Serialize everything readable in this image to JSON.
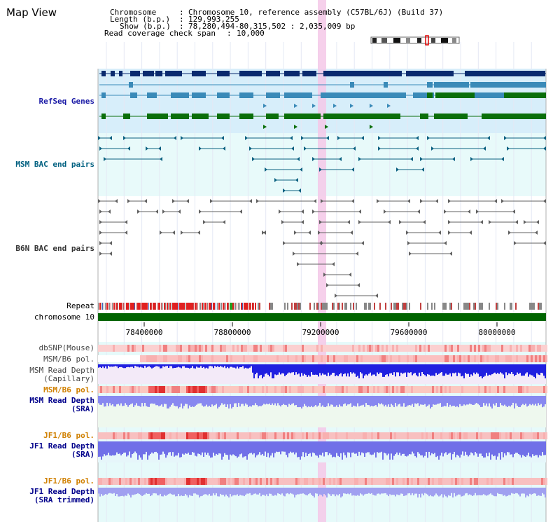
{
  "page": {
    "title": "Map View"
  },
  "info": {
    "chromosome_label": "Chromosome",
    "chromosome_value": "Chromosome 10, reference assembly (C57BL/6J) (Build 37)",
    "length_label": "Length (b.p.)",
    "length_value": "129,993,255",
    "show_label": "Show (b.p.)",
    "show_value": "78,280,494-80,315,502 : 2,035,009 bp",
    "coverage_label": "Read coverage check span",
    "coverage_value": "10,000"
  },
  "axis": {
    "ticks": [
      "78400000",
      "78800000",
      "79200000",
      "79600000",
      "80000000"
    ]
  },
  "tracks": {
    "refseq": "RefSeq Genes",
    "msm_bac": "MSM BAC end pairs",
    "b6n_bac": "B6N BAC end pairs",
    "repeat": "Repeat",
    "chromosome": "chromosome 10",
    "dbsnp": "dbSNP(Mouse)",
    "msm_b6_pol_1": "MSM/B6 pol.",
    "msm_depth_cap_1": "MSM Read Depth",
    "msm_depth_cap_2": "(Capillary)",
    "msm_b6_pol_2": "MSM/B6 pol.",
    "msm_depth_sra_1": "MSM Read Depth",
    "msm_depth_sra_2": "(SRA)",
    "jf1_b6_pol_1": "JF1/B6 pol.",
    "jf1_depth_sra_1": "JF1 Read Depth",
    "jf1_depth_sra_2": "(SRA)",
    "jf1_b6_pol_2": "JF1/B6 pol.",
    "jf1_depth_trim_1": "JF1 Read Depth",
    "jf1_depth_trim_2": "(SRA trimmed)"
  },
  "colors": {
    "refseq_bg": "#d7eefa",
    "msm_bac_bg": "#e8fafa",
    "data_bg": "#e6fafa",
    "highlight": "#f5c8e8",
    "gene_dark": "#0a2a6e",
    "gene_mid": "#3a8ab8",
    "gene_green": "#0a6e0a",
    "bac_teal": "#0a6080",
    "bac_gray": "#606060",
    "chrom_green": "#006400",
    "depth_blue": "#2020e0",
    "depth_light": "#8888f0"
  }
}
